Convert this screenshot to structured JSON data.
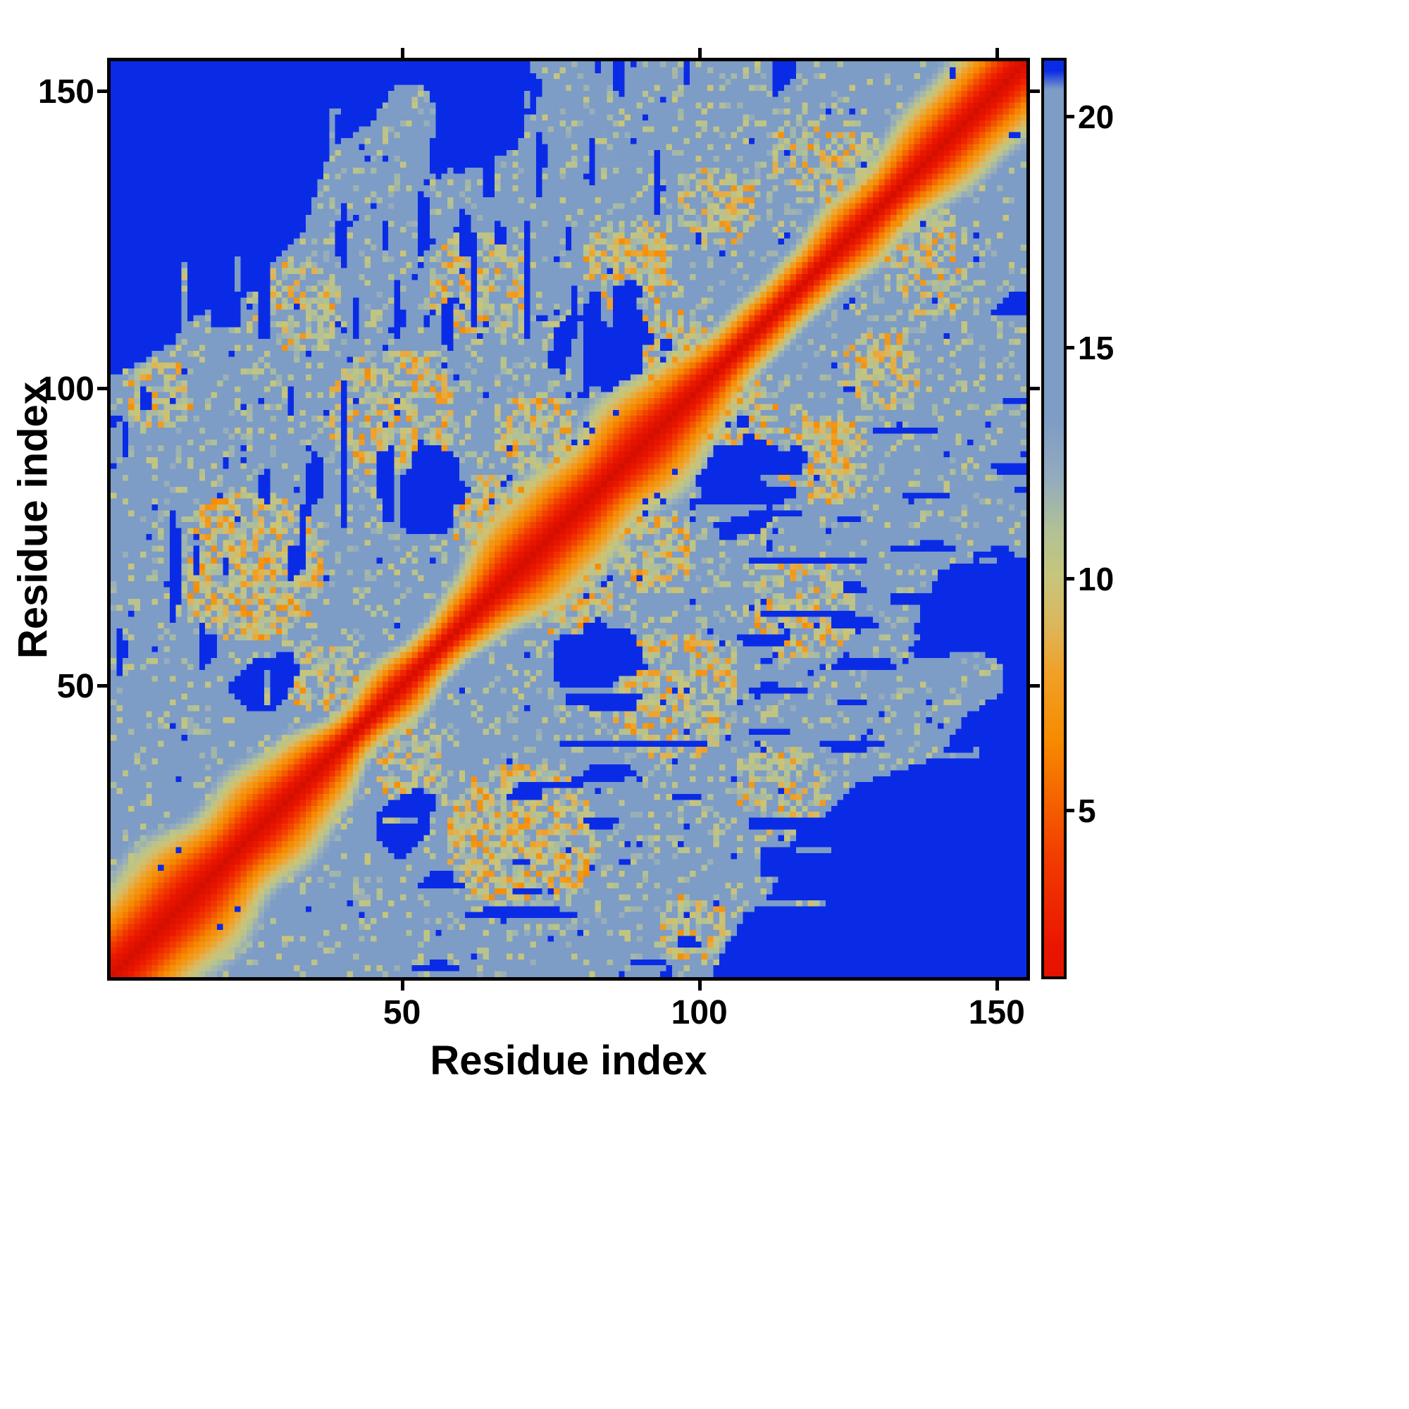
{
  "figure": {
    "background": "#ffffff",
    "frame_color": "#000000"
  },
  "chart_data": {
    "type": "heatmap",
    "title": "",
    "xlabel": "Residue index",
    "ylabel": "Residue index",
    "x_min": 1,
    "x_max": 155,
    "y_min": 1,
    "y_max": 155,
    "x_ticks": [
      50,
      100,
      150
    ],
    "y_ticks": [
      50,
      100,
      150
    ],
    "grid": false,
    "legend": "none",
    "description": "Symmetric residue-residue distance map (155 x 155). Red along the main diagonal (short distances), fading through orange and yellow-green to a uniform light steel-blue mid-range; saturated dark blue marks distances beyond ~21 in the far off-diagonal corners, in isolated blobs, and as speckles.",
    "colorbar": {
      "ticks": [
        5,
        10,
        15,
        20
      ],
      "vmin": 1.4,
      "vmax": 21.2
    },
    "colormap_stops": [
      [
        0.0,
        "#d50f00"
      ],
      [
        2.0,
        "#ea1500"
      ],
      [
        4.0,
        "#f23d00"
      ],
      [
        5.2,
        "#f56300"
      ],
      [
        6.5,
        "#f68b00"
      ],
      [
        8.0,
        "#f0a12a"
      ],
      [
        9.0,
        "#dcb75c"
      ],
      [
        10.0,
        "#c8c57a"
      ],
      [
        11.0,
        "#b3c294"
      ],
      [
        12.2,
        "#93abbe"
      ],
      [
        13.5,
        "#7d9cc6"
      ],
      [
        20.6,
        "#7d9cc6"
      ],
      [
        21.0,
        "#0a2be6"
      ],
      [
        22.3,
        "#0a2be6"
      ]
    ],
    "generation": {
      "n": 155,
      "seed": 11,
      "diag_slope": 1.05,
      "background": 15.2,
      "dark_value": 22,
      "far_start": 55,
      "far_end": 115,
      "blobs": [
        [
          84,
          108,
          9
        ],
        [
          52,
          83,
          7
        ],
        [
          27,
          51,
          5
        ]
      ],
      "contact_clusters": [
        [
          12,
          127,
          11,
          0.38
        ],
        [
          24,
          70,
          13,
          0.34
        ],
        [
          48,
          96,
          11,
          0.3
        ],
        [
          63,
          118,
          9,
          0.3
        ],
        [
          88,
          121,
          8,
          0.34
        ],
        [
          72,
          93,
          7,
          0.25
        ],
        [
          103,
          131,
          7,
          0.3
        ],
        [
          9,
          99,
          6,
          0.3
        ],
        [
          32,
          114,
          8,
          0.2
        ],
        [
          118,
          140,
          6,
          0.22
        ],
        [
          66,
          78,
          8,
          0.3
        ],
        [
          38,
          50,
          7,
          0.25
        ],
        [
          95,
          107,
          7,
          0.3
        ],
        [
          125,
          137,
          7,
          0.28
        ]
      ]
    }
  }
}
